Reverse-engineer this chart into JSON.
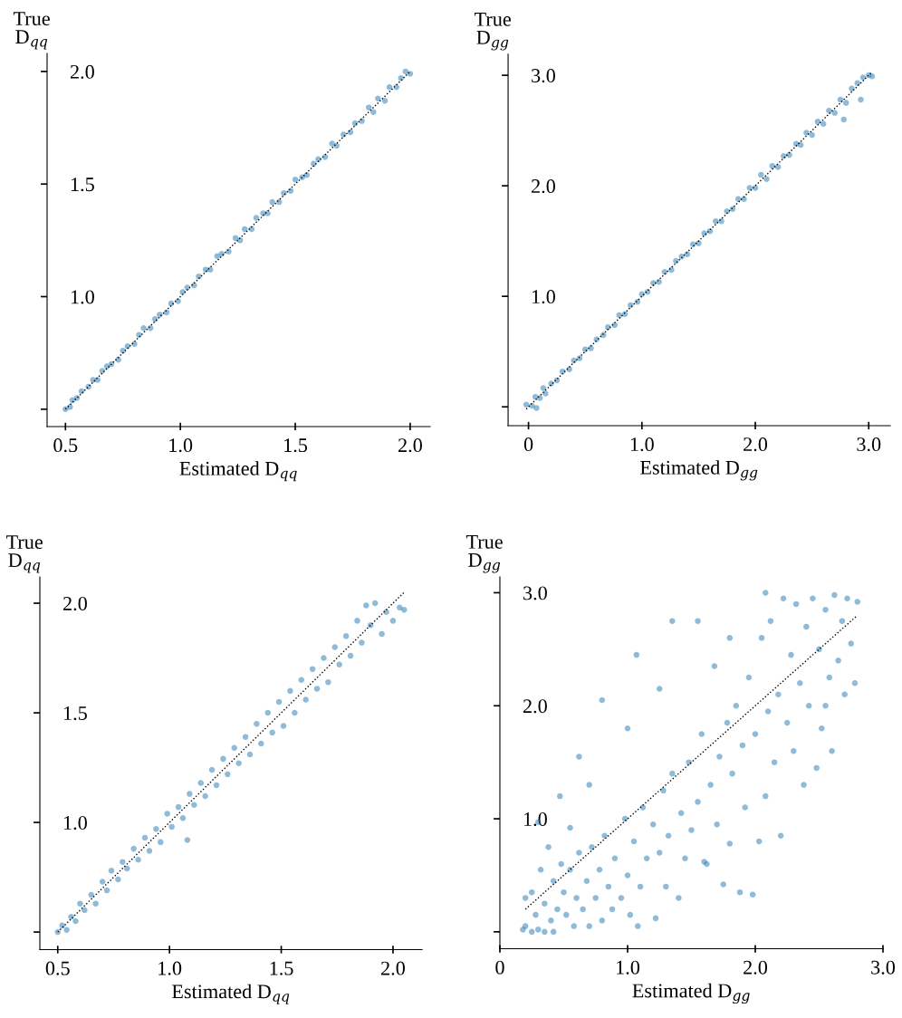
{
  "chart_data": [
    {
      "type": "scatter",
      "xlabel": "Estimated D$_{qq}$",
      "ylabel": "True\nD$_{qq}$",
      "xlim": [
        0.42,
        2.087
      ],
      "ylim": [
        0.423,
        2.08
      ],
      "xticks": [
        0.5,
        {
          "value": 1,
          "label": "1.0"
        },
        1.5,
        {
          "value": 2,
          "label": "2.0"
        }
      ],
      "yticks": [
        {
          "value": 0.5,
          "label": null
        },
        {
          "value": 1,
          "label": "1.0"
        },
        1.5,
        {
          "value": 2,
          "label": "2.0"
        }
      ],
      "series": [
        {
          "marker": "circle",
          "color": "#1f77b4",
          "x": [
            0.5,
            0.52,
            0.53,
            0.55,
            0.57,
            0.6,
            0.62,
            0.64,
            0.66,
            0.68,
            0.7,
            0.73,
            0.75,
            0.77,
            0.8,
            0.82,
            0.84,
            0.87,
            0.89,
            0.91,
            0.94,
            0.96,
            0.99,
            1.01,
            1.03,
            1.06,
            1.08,
            1.11,
            1.13,
            1.16,
            1.18,
            1.21,
            1.24,
            1.26,
            1.28,
            1.31,
            1.33,
            1.36,
            1.38,
            1.4,
            1.43,
            1.45,
            1.48,
            1.5,
            1.53,
            1.55,
            1.58,
            1.6,
            1.63,
            1.66,
            1.68,
            1.71,
            1.74,
            1.76,
            1.79,
            1.82,
            1.84,
            1.86,
            1.89,
            1.91,
            1.94,
            1.96,
            1.98,
            2.0
          ],
          "values": [
            0.5,
            0.51,
            0.54,
            0.55,
            0.58,
            0.6,
            0.63,
            0.63,
            0.67,
            0.69,
            0.7,
            0.72,
            0.76,
            0.78,
            0.79,
            0.83,
            0.86,
            0.86,
            0.9,
            0.92,
            0.93,
            0.97,
            0.98,
            1.02,
            1.04,
            1.05,
            1.09,
            1.12,
            1.12,
            1.18,
            1.19,
            1.2,
            1.26,
            1.25,
            1.3,
            1.3,
            1.35,
            1.37,
            1.37,
            1.42,
            1.42,
            1.46,
            1.47,
            1.52,
            1.53,
            1.54,
            1.59,
            1.61,
            1.62,
            1.68,
            1.67,
            1.72,
            1.73,
            1.77,
            1.78,
            1.84,
            1.82,
            1.88,
            1.87,
            1.93,
            1.93,
            1.97,
            2.0,
            1.99
          ]
        },
        {
          "type": "line",
          "color": "#000000",
          "line_style": "dotted",
          "x": [
            0.5,
            2.0
          ],
          "values": [
            0.5,
            2.0
          ]
        }
      ]
    },
    {
      "type": "scatter",
      "xlabel": "Estimated D$_{gg}$",
      "ylabel": "True\nD$_{gg}$",
      "xlim": [
        -0.18,
        3.19
      ],
      "ylim": [
        -0.17,
        3.19
      ],
      "xticks": [
        0,
        {
          "value": 1,
          "label": "1.0"
        },
        {
          "value": 2,
          "label": "2.0"
        },
        {
          "value": 3,
          "label": "3.0"
        }
      ],
      "yticks": [
        {
          "value": 0,
          "label": null
        },
        {
          "value": 1,
          "label": "1.0"
        },
        {
          "value": 2,
          "label": "2.0"
        },
        {
          "value": 3,
          "label": "3.0"
        }
      ],
      "series": [
        {
          "marker": "circle",
          "color": "#1f77b4",
          "x": [
            -0.02,
            0.03,
            0.06,
            0.07,
            0.1,
            0.13,
            0.15,
            0.2,
            0.25,
            0.3,
            0.36,
            0.4,
            0.45,
            0.5,
            0.55,
            0.6,
            0.66,
            0.7,
            0.76,
            0.8,
            0.85,
            0.9,
            0.96,
            1.0,
            1.05,
            1.1,
            1.15,
            1.2,
            1.26,
            1.3,
            1.35,
            1.4,
            1.45,
            1.5,
            1.55,
            1.6,
            1.65,
            1.7,
            1.75,
            1.8,
            1.85,
            1.9,
            1.95,
            2.0,
            2.05,
            2.1,
            2.15,
            2.2,
            2.25,
            2.3,
            2.36,
            2.4,
            2.45,
            2.5,
            2.55,
            2.6,
            2.65,
            2.7,
            2.75,
            2.78,
            2.8,
            2.85,
            2.9,
            2.93,
            2.95,
            3.0,
            3.03
          ],
          "values": [
            0.02,
            0.01,
            0.09,
            -0.01,
            0.08,
            0.17,
            0.12,
            0.21,
            0.24,
            0.32,
            0.34,
            0.42,
            0.44,
            0.52,
            0.53,
            0.61,
            0.65,
            0.72,
            0.74,
            0.83,
            0.84,
            0.92,
            0.95,
            1.02,
            1.04,
            1.12,
            1.13,
            1.22,
            1.24,
            1.32,
            1.36,
            1.38,
            1.47,
            1.48,
            1.57,
            1.59,
            1.68,
            1.68,
            1.77,
            1.79,
            1.88,
            1.88,
            1.98,
            1.98,
            2.1,
            2.06,
            2.18,
            2.17,
            2.27,
            2.28,
            2.38,
            2.37,
            2.48,
            2.46,
            2.58,
            2.56,
            2.68,
            2.66,
            2.78,
            2.6,
            2.75,
            2.88,
            2.93,
            2.78,
            2.98,
            3.0,
            2.99
          ]
        },
        {
          "type": "line",
          "color": "#000000",
          "line_style": "dotted",
          "x": [
            -0.02,
            3.03
          ],
          "values": [
            -0.02,
            3.03
          ]
        }
      ]
    },
    {
      "type": "scatter",
      "xlabel": "Estimated D$_{qq}$",
      "ylabel": "True\nD$_{qq}$",
      "xlim": [
        0.42,
        2.13
      ],
      "ylim": [
        0.42,
        2.12
      ],
      "xticks": [
        0.5,
        {
          "value": 1,
          "label": "1.0"
        },
        1.5,
        {
          "value": 2,
          "label": "2.0"
        }
      ],
      "yticks": [
        {
          "value": 0.5,
          "label": null
        },
        {
          "value": 1,
          "label": "1.0"
        },
        1.5,
        {
          "value": 2,
          "label": "2.0"
        }
      ],
      "series": [
        {
          "marker": "circle",
          "color": "#1f77b4",
          "x": [
            0.5,
            0.52,
            0.54,
            0.56,
            0.58,
            0.6,
            0.62,
            0.65,
            0.67,
            0.7,
            0.72,
            0.74,
            0.77,
            0.79,
            0.81,
            0.84,
            0.86,
            0.89,
            0.91,
            0.94,
            0.96,
            0.99,
            1.01,
            1.04,
            1.06,
            1.08,
            1.09,
            1.11,
            1.14,
            1.16,
            1.19,
            1.21,
            1.24,
            1.26,
            1.29,
            1.31,
            1.34,
            1.36,
            1.39,
            1.41,
            1.44,
            1.46,
            1.49,
            1.51,
            1.54,
            1.56,
            1.59,
            1.61,
            1.64,
            1.66,
            1.69,
            1.71,
            1.74,
            1.76,
            1.79,
            1.81,
            1.84,
            1.86,
            1.88,
            1.9,
            1.92,
            1.95,
            1.97,
            2.0,
            2.03,
            2.05
          ],
          "values": [
            0.5,
            0.53,
            0.51,
            0.57,
            0.55,
            0.63,
            0.6,
            0.67,
            0.63,
            0.73,
            0.69,
            0.78,
            0.74,
            0.82,
            0.79,
            0.88,
            0.83,
            0.93,
            0.87,
            0.97,
            0.91,
            1.04,
            0.98,
            1.07,
            1.02,
            0.92,
            1.13,
            1.08,
            1.18,
            1.12,
            1.24,
            1.17,
            1.29,
            1.22,
            1.34,
            1.27,
            1.39,
            1.31,
            1.45,
            1.36,
            1.5,
            1.41,
            1.55,
            1.44,
            1.6,
            1.5,
            1.65,
            1.56,
            1.7,
            1.61,
            1.75,
            1.64,
            1.8,
            1.72,
            1.85,
            1.76,
            1.92,
            1.82,
            1.99,
            1.9,
            2.0,
            1.86,
            1.96,
            1.92,
            1.98,
            1.97
          ]
        },
        {
          "type": "line",
          "color": "#000000",
          "line_style": "dotted",
          "x": [
            0.5,
            2.05
          ],
          "values": [
            0.5,
            2.05
          ]
        }
      ]
    },
    {
      "type": "scatter",
      "xlabel": "Estimated D$_{gg}$",
      "ylabel": "True\nD$_{gg}$",
      "xlim": [
        0,
        3
      ],
      "ylim": [
        -0.15,
        3.14
      ],
      "xticks": [
        0,
        {
          "value": 1,
          "label": "1.0"
        },
        {
          "value": 2,
          "label": "2.0"
        },
        {
          "value": 3,
          "label": "3.0"
        }
      ],
      "yticks": [
        {
          "value": 0,
          "label": null
        },
        {
          "value": 1,
          "label": "1.0"
        },
        {
          "value": 2,
          "label": "2.0"
        },
        {
          "value": 3,
          "label": "3.0"
        }
      ],
      "series": [
        {
          "marker": "circle",
          "color": "#1f77b4",
          "x": [
            0.18,
            0.2,
            0.25,
            0.3,
            0.35,
            0.42,
            0.2,
            0.25,
            0.28,
            0.32,
            0.35,
            0.4,
            0.42,
            0.45,
            0.48,
            0.5,
            0.52,
            0.55,
            0.58,
            0.6,
            0.62,
            0.65,
            0.68,
            0.7,
            0.72,
            0.75,
            0.78,
            0.8,
            0.82,
            0.85,
            0.88,
            0.9,
            0.95,
            0.98,
            1.0,
            1.02,
            1.05,
            1.08,
            1.1,
            1.12,
            1.15,
            1.2,
            1.22,
            1.25,
            1.28,
            1.3,
            1.32,
            1.35,
            1.4,
            1.42,
            1.45,
            1.48,
            1.5,
            1.55,
            1.58,
            1.6,
            1.65,
            1.68,
            1.7,
            1.72,
            1.75,
            1.78,
            1.8,
            1.82,
            1.85,
            1.88,
            1.9,
            1.92,
            1.95,
            1.98,
            2.0,
            2.03,
            2.05,
            2.08,
            2.1,
            2.12,
            2.15,
            2.18,
            2.2,
            2.22,
            2.25,
            2.28,
            2.3,
            2.32,
            2.35,
            2.38,
            2.4,
            2.42,
            2.45,
            2.48,
            2.5,
            2.52,
            2.55,
            2.58,
            2.6,
            2.62,
            2.65,
            2.68,
            2.7,
            2.72,
            2.75,
            2.78,
            2.8,
            1.07,
            1.35,
            0.8,
            0.62,
            0.47,
            0.3,
            1.55,
            2.08,
            1.0,
            1.8,
            0.7,
            1.25,
            0.55,
            2.55,
            0.38,
            1.62
          ],
          "values": [
            0.02,
            0.05,
            0.0,
            0.02,
            0.0,
            0.0,
            0.3,
            0.35,
            0.15,
            0.55,
            0.25,
            0.1,
            0.45,
            0.2,
            0.6,
            0.35,
            0.15,
            0.55,
            0.05,
            0.3,
            0.7,
            0.2,
            0.45,
            0.05,
            0.75,
            0.3,
            0.55,
            0.1,
            0.85,
            0.4,
            0.2,
            0.65,
            0.3,
            1.0,
            0.5,
            0.15,
            0.8,
            0.05,
            0.4,
            1.1,
            0.65,
            0.95,
            0.12,
            0.7,
            1.25,
            0.4,
            0.85,
            1.4,
            0.3,
            1.05,
            0.65,
            1.5,
            0.9,
            1.15,
            1.75,
            0.62,
            1.3,
            2.35,
            0.95,
            1.55,
            0.42,
            1.85,
            0.78,
            1.4,
            2.0,
            0.35,
            1.65,
            1.1,
            2.25,
            0.33,
            1.75,
            0.8,
            2.6,
            1.2,
            1.95,
            2.75,
            1.5,
            2.1,
            0.85,
            2.95,
            1.85,
            2.45,
            1.6,
            2.9,
            2.2,
            1.3,
            2.7,
            2.0,
            2.95,
            1.45,
            2.5,
            1.8,
            2.85,
            2.25,
            1.6,
            2.98,
            2.4,
            2.75,
            2.1,
            2.95,
            2.55,
            2.2,
            2.92,
            2.45,
            2.75,
            2.05,
            1.55,
            1.2,
            0.97,
            2.75,
            3.0,
            1.8,
            2.6,
            1.3,
            2.15,
            0.92,
            2.0,
            0.75,
            0.6
          ]
        },
        {
          "type": "line",
          "color": "#000000",
          "line_style": "dotted",
          "x": [
            0.2,
            2.8
          ],
          "values": [
            0.2,
            2.8
          ]
        }
      ]
    }
  ]
}
